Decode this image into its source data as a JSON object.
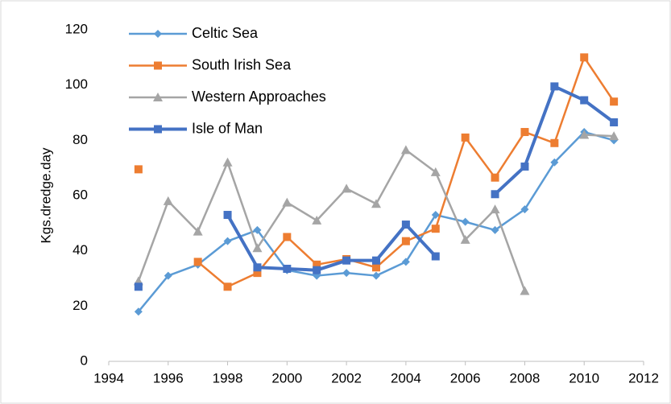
{
  "chart_data": {
    "type": "line",
    "y_label": "Kgs.dredge.day",
    "x": [
      1995,
      1996,
      1997,
      1998,
      1999,
      2000,
      2001,
      2002,
      2003,
      2004,
      2005,
      2006,
      2007,
      2008,
      2009,
      2010,
      2011
    ],
    "series": [
      {
        "name": "Celtic Sea",
        "color": "#5b9bd5",
        "marker": "diamond",
        "width": 2.5,
        "values": [
          18,
          31,
          35,
          43.5,
          47.5,
          33,
          31,
          32,
          31,
          36,
          53,
          50.5,
          47.5,
          55,
          72,
          83,
          80
        ]
      },
      {
        "name": "South Irish Sea",
        "color": "#ed7d31",
        "marker": "square",
        "width": 2.5,
        "values": [
          69.5,
          null,
          36,
          27,
          32,
          45,
          35,
          37,
          34,
          43.5,
          48,
          81,
          66.5,
          83,
          79,
          110,
          94
        ]
      },
      {
        "name": "Western Approaches",
        "color": "#a5a5a5",
        "marker": "triangle",
        "width": 2.5,
        "values": [
          29,
          58,
          47,
          72,
          41,
          57.5,
          51,
          62.5,
          57,
          76.5,
          68.5,
          44,
          55,
          25.5,
          null,
          82,
          81.5
        ]
      },
      {
        "name": "Isle of Man",
        "color": "#4472c4",
        "marker": "square",
        "width": 4,
        "values": [
          27,
          null,
          null,
          53,
          34,
          33.5,
          33,
          36.5,
          36.5,
          49.5,
          38,
          null,
          60.5,
          70.5,
          99.5,
          94.5,
          86.5
        ]
      }
    ],
    "xlim": [
      1994,
      2012
    ],
    "xticks": [
      1994,
      1996,
      1998,
      2000,
      2002,
      2004,
      2006,
      2008,
      2010,
      2012
    ],
    "ylim": [
      0,
      120
    ],
    "yticks": [
      0,
      20,
      40,
      60,
      80,
      100,
      120
    ],
    "grid": false,
    "legend": "upper left"
  }
}
